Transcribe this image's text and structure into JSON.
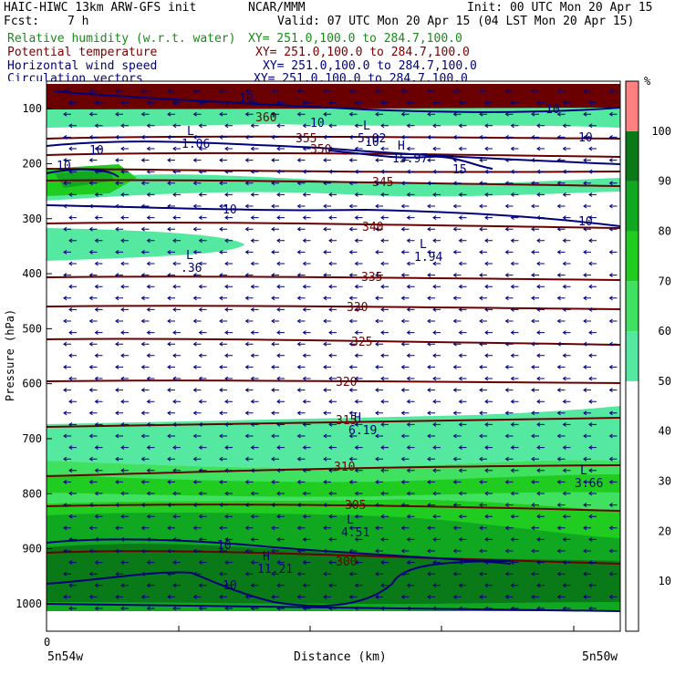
{
  "header": {
    "model": "HAIC-HIWC 13km ARW-GFS init",
    "org": "NCAR/MMM",
    "init": "Init: 00 UTC Mon 20 Apr 15",
    "fcst_label": "Fcst:",
    "fcst_value": "7 h",
    "valid": "Valid: 07 UTC Mon 20 Apr 15 (04 LST Mon 20 Apr 15)"
  },
  "legend": [
    {
      "field": "Relative humidity (w.r.t. water)",
      "xy": "XY= 251.0,100.0 to 284.7,100.0",
      "color": "#1a8a1a"
    },
    {
      "field": "Potential temperature",
      "xy": "XY= 251.0,100.0 to 284.7,100.0",
      "color": "#7a0000"
    },
    {
      "field": "Horizontal wind speed",
      "xy": "XY= 251.0,100.0 to 284.7,100.0",
      "color": "#00007a"
    },
    {
      "field": "Circulation vectors",
      "xy": "XY= 251.0,100.0 to 284.7,100.0",
      "color": "#00007a"
    }
  ],
  "chart_data": {
    "type": "heatmap",
    "ylabel": "Pressure (hPa)",
    "xlabel": "Distance (km)",
    "x_origin_label": "0",
    "x_left_label": "5n54w",
    "x_right_label": "5n50w",
    "y_ticks": [
      100,
      200,
      300,
      400,
      500,
      600,
      700,
      800,
      900,
      1000
    ],
    "ylim": [
      50,
      1050
    ],
    "colorbar": {
      "unit": "%",
      "ticks": [
        10,
        20,
        30,
        40,
        50,
        60,
        70,
        80,
        90,
        100
      ],
      "bands": [
        {
          "from": 50,
          "to": 60,
          "color": "#55e8a0"
        },
        {
          "from": 60,
          "to": 70,
          "color": "#40e060"
        },
        {
          "from": 70,
          "to": 80,
          "color": "#20cc20"
        },
        {
          "from": 80,
          "to": 90,
          "color": "#10a820"
        },
        {
          "from": 90,
          "to": 100,
          "color": "#0a7a18"
        },
        {
          "from": 100,
          "to": 110,
          "color": "#ff8080"
        }
      ]
    },
    "theta_labels": [
      "360",
      "355",
      "350",
      "345",
      "340",
      "335",
      "330",
      "325",
      "320",
      "315",
      "310",
      "305",
      "300"
    ],
    "wind_labels": [
      "10",
      "10",
      "10",
      "10",
      "15",
      "10",
      "10",
      "10",
      "10",
      "10",
      "10",
      "10"
    ],
    "extrema": [
      {
        "type": "L",
        "value": "1.06"
      },
      {
        "type": "L",
        "value": "5.02"
      },
      {
        "type": "H",
        "value": "15.97"
      },
      {
        "type": "L",
        "value": ".36"
      },
      {
        "type": "L",
        "value": "1.94"
      },
      {
        "type": "H",
        "value": "6.19"
      },
      {
        "type": "L",
        "value": "3.66"
      },
      {
        "type": "L",
        "value": "4.51"
      },
      {
        "type": "H",
        "value": "11.21"
      }
    ]
  }
}
